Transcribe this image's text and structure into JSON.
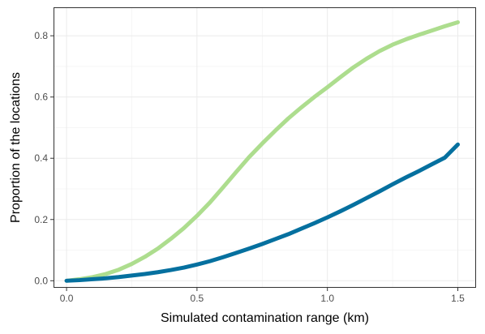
{
  "chart_data": {
    "type": "line",
    "title": "",
    "xlabel": "Simulated contamination range (km)",
    "ylabel": "Proportion of the locations",
    "xlim": [
      -0.05,
      1.57
    ],
    "ylim": [
      -0.023,
      0.893
    ],
    "x_ticks": [
      0.0,
      0.5,
      1.0,
      1.5
    ],
    "x_tick_labels": [
      "0.0",
      "0.5",
      "1.0",
      "1.5"
    ],
    "y_ticks": [
      0.0,
      0.2,
      0.4,
      0.6,
      0.8
    ],
    "y_tick_labels": [
      "0.0",
      "0.2",
      "0.4",
      "0.6",
      "0.8"
    ],
    "grid": true,
    "legend": "none",
    "series": [
      {
        "color": "#addd8e",
        "x": [
          0.0,
          0.05,
          0.1,
          0.15,
          0.2,
          0.25,
          0.3,
          0.35,
          0.4,
          0.45,
          0.5,
          0.55,
          0.6,
          0.65,
          0.7,
          0.75,
          0.8,
          0.85,
          0.9,
          0.95,
          1.0,
          1.05,
          1.1,
          1.15,
          1.2,
          1.25,
          1.3,
          1.35,
          1.4,
          1.45,
          1.5
        ],
        "y": [
          0.0,
          0.005,
          0.012,
          0.022,
          0.036,
          0.055,
          0.078,
          0.105,
          0.137,
          0.172,
          0.212,
          0.256,
          0.305,
          0.355,
          0.404,
          0.448,
          0.49,
          0.53,
          0.566,
          0.6,
          0.632,
          0.665,
          0.697,
          0.725,
          0.75,
          0.771,
          0.788,
          0.803,
          0.817,
          0.831,
          0.844
        ]
      },
      {
        "color": "#05709f",
        "x": [
          0.0,
          0.05,
          0.1,
          0.15,
          0.2,
          0.25,
          0.3,
          0.35,
          0.4,
          0.45,
          0.5,
          0.55,
          0.6,
          0.65,
          0.7,
          0.75,
          0.8,
          0.85,
          0.9,
          0.95,
          1.0,
          1.05,
          1.1,
          1.15,
          1.2,
          1.25,
          1.3,
          1.35,
          1.4,
          1.45,
          1.5
        ],
        "y": [
          0.0,
          0.002,
          0.005,
          0.008,
          0.012,
          0.017,
          0.022,
          0.028,
          0.035,
          0.043,
          0.053,
          0.064,
          0.077,
          0.091,
          0.105,
          0.12,
          0.136,
          0.152,
          0.17,
          0.188,
          0.207,
          0.227,
          0.248,
          0.27,
          0.292,
          0.315,
          0.337,
          0.358,
          0.38,
          0.402,
          0.445
        ]
      }
    ]
  }
}
